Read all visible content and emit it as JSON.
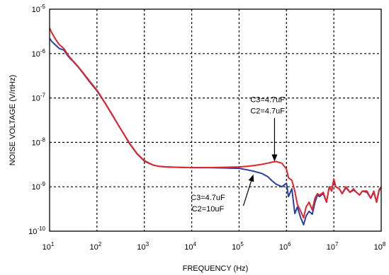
{
  "chart_data": {
    "type": "line",
    "title": "",
    "xlabel": "FREQUENCY (Hz)",
    "ylabel": "NOISE VOLTAGE (V/rtHz)",
    "x_scale": "log",
    "y_scale": "log",
    "xlim": [
      10,
      100000000
    ],
    "ylim": [
      1e-10,
      1e-05
    ],
    "grid": true,
    "x_ticks": [
      {
        "value": 10,
        "base": "10",
        "exp": "1"
      },
      {
        "value": 100,
        "base": "10",
        "exp": "2"
      },
      {
        "value": 1000,
        "base": "10",
        "exp": "3"
      },
      {
        "value": 10000,
        "base": "10",
        "exp": "4"
      },
      {
        "value": 100000,
        "base": "10",
        "exp": "5"
      },
      {
        "value": 1000000,
        "base": "10",
        "exp": "6"
      },
      {
        "value": 10000000,
        "base": "10",
        "exp": "7"
      },
      {
        "value": 100000000,
        "base": "10",
        "exp": "8"
      }
    ],
    "y_ticks": [
      {
        "value": 1e-10,
        "base": "10",
        "exp": "-10"
      },
      {
        "value": 1e-09,
        "base": "10",
        "exp": "-9"
      },
      {
        "value": 1e-08,
        "base": "10",
        "exp": "-8"
      },
      {
        "value": 1e-07,
        "base": "10",
        "exp": "-7"
      },
      {
        "value": 1e-06,
        "base": "10",
        "exp": "-6"
      },
      {
        "value": 1e-05,
        "base": "10",
        "exp": "-5"
      }
    ],
    "series": [
      {
        "color": "#2b3fa0",
        "x": [
          10,
          11,
          13,
          16,
          20,
          25,
          30,
          40,
          50,
          70,
          100,
          150,
          200,
          300,
          500,
          700,
          1000,
          1500,
          2000,
          3000,
          5000,
          10000,
          20000,
          50000,
          100000,
          150000,
          200000,
          300000,
          400000,
          500000,
          600000,
          800000,
          1000000,
          1100000,
          1300000,
          1500000,
          1700000,
          2000000,
          2300000,
          2600000,
          3000000,
          3500000,
          4000000,
          4500000,
          5000000,
          5500000,
          6000000,
          7000000,
          8000000,
          9000000,
          10000000,
          11000000,
          13000000,
          15000000,
          18000000,
          22000000,
          26000000,
          30000000,
          35000000,
          40000000,
          50000000,
          60000000,
          70000000,
          80000000,
          90000000,
          100000000
        ],
        "y": [
          2.2e-06,
          1.9e-06,
          1.6e-06,
          1.3e-06,
          1.2e-06,
          8.5e-07,
          7e-07,
          5e-07,
          3.7e-07,
          2.3e-07,
          1.45e-07,
          7.5e-08,
          4.5e-08,
          2.2e-08,
          9e-09,
          5.5e-09,
          3.8e-09,
          3.1e-09,
          2.9e-09,
          2.8e-09,
          2.75e-09,
          2.7e-09,
          2.7e-09,
          2.65e-09,
          2.6e-09,
          2.4e-09,
          2.25e-09,
          2e-09,
          1.7e-09,
          1.35e-09,
          1.15e-09,
          1e-09,
          1.2e-09,
          6e-10,
          9e-10,
          2.5e-10,
          3.5e-10,
          2e-10,
          1.4e-10,
          2.2e-10,
          2.8e-10,
          2.4e-10,
          4.5e-10,
          6.5e-10,
          6e-10,
          6.5e-10,
          7e-10,
          4.5e-10,
          1e-09,
          8e-10,
          1.4e-09,
          1e-09,
          9e-10,
          7e-10,
          9.5e-10,
          7.5e-10,
          8.5e-10,
          7.5e-10,
          6.5e-10,
          8e-10,
          7.5e-10,
          5.5e-10,
          7.5e-10,
          4.5e-10,
          8e-10,
          1e-09
        ]
      },
      {
        "color": "#e3242b",
        "x": [
          10,
          11,
          13,
          16,
          20,
          25,
          30,
          40,
          50,
          70,
          100,
          150,
          200,
          300,
          500,
          700,
          1000,
          1500,
          2000,
          3000,
          5000,
          10000,
          20000,
          50000,
          100000,
          150000,
          200000,
          300000,
          400000,
          500000,
          600000,
          800000,
          1000000,
          1100000,
          1300000,
          1500000,
          1700000,
          2000000,
          2300000,
          2600000,
          3000000,
          3500000,
          4000000,
          4500000,
          5000000,
          5500000,
          6000000,
          7000000,
          8000000,
          9000000,
          10000000,
          11000000,
          13000000,
          15000000,
          18000000,
          22000000,
          26000000,
          30000000,
          35000000,
          40000000,
          50000000,
          60000000,
          70000000,
          80000000,
          90000000,
          100000000
        ],
        "y": [
          3.8e-06,
          3e-06,
          2.2e-06,
          1.6e-06,
          1.3e-06,
          9e-07,
          7.2e-07,
          5.1e-07,
          3.8e-07,
          2.4e-07,
          1.5e-07,
          7.6e-08,
          4.6e-08,
          2.2e-08,
          9.2e-09,
          5.6e-09,
          3.9e-09,
          3.1e-09,
          2.9e-09,
          2.8e-09,
          2.75e-09,
          2.7e-09,
          2.7e-09,
          2.75e-09,
          2.8e-09,
          2.9e-09,
          3e-09,
          3.2e-09,
          3.4e-09,
          3.6e-09,
          3.7e-09,
          3.4e-09,
          2.5e-09,
          1.6e-09,
          1.4e-09,
          8e-10,
          4e-10,
          2.8e-10,
          2e-10,
          3.5e-10,
          4.5e-10,
          3e-10,
          5.5e-10,
          7e-10,
          6.5e-10,
          7e-10,
          7.5e-10,
          4.5e-10,
          1e-09,
          8e-10,
          1.5e-09,
          1e-09,
          9e-10,
          7e-10,
          1e-09,
          7.5e-10,
          9e-10,
          7.5e-10,
          6.5e-10,
          8e-10,
          8e-10,
          5.5e-10,
          8e-10,
          4.5e-10,
          8.5e-10,
          1e-09
        ]
      }
    ],
    "annotations": [
      {
        "line1": "C3=4.7uF",
        "line2": "C2=4.7uF",
        "target_x": 560000,
        "target_y": 3.7e-09,
        "text_x": 400000,
        "text_y": 8e-08
      },
      {
        "line1": "C3=4.7uF",
        "line2": "C2=10uF",
        "target_x": 200000,
        "target_y": 1.9e-09,
        "text_x": 22000,
        "text_y": 5e-10
      }
    ]
  }
}
